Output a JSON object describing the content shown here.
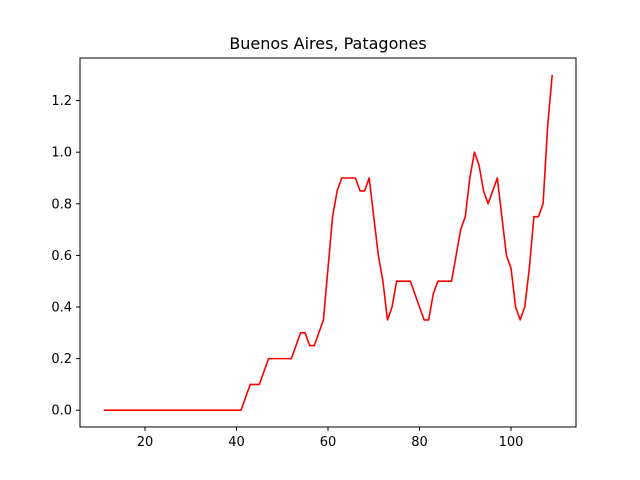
{
  "chart_data": {
    "type": "line",
    "title": "Buenos Aires, Patagones",
    "xlabel": "",
    "ylabel": "",
    "xlim": [
      5.8,
      114.2
    ],
    "ylim": [
      -0.065,
      1.365
    ],
    "xticks": [
      20,
      40,
      60,
      80,
      100
    ],
    "yticks": [
      0.0,
      0.2,
      0.4,
      0.6,
      0.8,
      1.0,
      1.2
    ],
    "ytick_labels": [
      "0.0",
      "0.2",
      "0.4",
      "0.6",
      "0.8",
      "1.0",
      "1.2"
    ],
    "grid": false,
    "legend": "none",
    "series": [
      {
        "color": "#ff0000",
        "x": [
          11,
          41,
          43,
          45,
          47,
          52,
          54,
          55,
          56,
          57,
          59,
          60,
          61,
          62,
          63,
          64,
          65,
          66,
          67,
          68,
          69,
          70,
          71,
          72,
          73,
          74,
          75,
          76,
          77,
          78,
          79,
          80,
          81,
          82,
          83,
          84,
          85,
          86,
          87,
          88,
          89,
          90,
          91,
          92,
          93,
          94,
          95,
          96,
          97,
          98,
          99,
          100,
          101,
          102,
          103,
          104,
          105,
          106,
          107,
          108,
          109
        ],
        "values": [
          0.0,
          0.0,
          0.1,
          0.1,
          0.2,
          0.2,
          0.3,
          0.3,
          0.25,
          0.25,
          0.35,
          0.55,
          0.75,
          0.85,
          0.9,
          0.9,
          0.9,
          0.9,
          0.85,
          0.85,
          0.9,
          0.75,
          0.6,
          0.5,
          0.35,
          0.4,
          0.5,
          0.5,
          0.5,
          0.5,
          0.45,
          0.4,
          0.35,
          0.35,
          0.45,
          0.5,
          0.5,
          0.5,
          0.5,
          0.6,
          0.7,
          0.75,
          0.9,
          1.0,
          0.95,
          0.85,
          0.8,
          0.85,
          0.9,
          0.75,
          0.6,
          0.55,
          0.4,
          0.35,
          0.4,
          0.55,
          0.75,
          0.75,
          0.8,
          1.1,
          1.3
        ]
      }
    ]
  }
}
